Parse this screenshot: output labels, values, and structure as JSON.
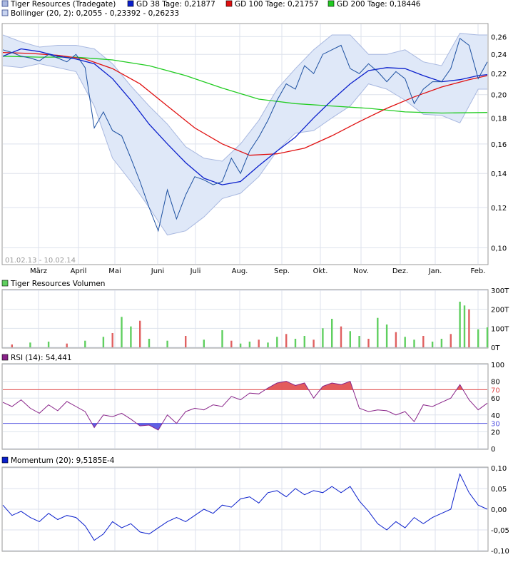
{
  "legend": {
    "price_label": "Tiger Resources (Tradegate)",
    "gd38_label": "GD 38 Tage: 0,21877",
    "gd100_label": "GD 100 Tage: 0,21757",
    "gd200_label": "GD 200 Tage: 0,18446",
    "bollinger_label": "Bollinger (20, 2): 0,2055 - 0,23392 - 0,26233",
    "date_range": "01.02.13 - 10.02.14",
    "volume_label": "Tiger Resources Volumen",
    "rsi_label": "RSI (14): 54,441",
    "momentum_label": "Momentum (20): 9,5185E-4"
  },
  "colors": {
    "price": "#1b4fa0",
    "gd38": "#0a1fcc",
    "gd100": "#e01010",
    "gd200": "#22cc22",
    "band_fill": "#dfe8f8",
    "band_line": "#a8b8e0",
    "volume_up": "#5fcf5f",
    "volume_down": "#e06060",
    "rsi": "#882288",
    "rsi_over": "#e04a4a",
    "rsi_under": "#5050e0",
    "momentum": "#0a1fcc"
  },
  "chart_data": [
    {
      "type": "line",
      "panel": "price",
      "scale": "log",
      "months": [
        "März",
        "April",
        "Mai",
        "Juni",
        "Juli",
        "Aug.",
        "Sep.",
        "Okt.",
        "Nov.",
        "Dez.",
        "Jan.",
        "Feb."
      ],
      "y_ticks": [
        "0,10",
        "0,12",
        "0,14",
        "0,16",
        "0,18",
        "0,20",
        "0,22",
        "0,24",
        "0,26"
      ],
      "ylim": [
        0.093,
        0.275
      ],
      "x_unit": "weeks since 01.02.13",
      "series": [
        {
          "name": "Tiger Resources (Tradegate)",
          "x": [
            0,
            1,
            2,
            3,
            4,
            5,
            6,
            7,
            8,
            9,
            10,
            11,
            12,
            13,
            14,
            15,
            16,
            17,
            18,
            19,
            20,
            21,
            22,
            23,
            24,
            25,
            26,
            27,
            28,
            29,
            30,
            31,
            32,
            33,
            34,
            35,
            36,
            37,
            38,
            39,
            40,
            41,
            42,
            43,
            44,
            45,
            46,
            47,
            48,
            49,
            50,
            51,
            52,
            53
          ],
          "y": [
            0.245,
            0.242,
            0.238,
            0.236,
            0.233,
            0.24,
            0.236,
            0.232,
            0.24,
            0.226,
            0.172,
            0.185,
            0.17,
            0.166,
            0.15,
            0.135,
            0.12,
            0.108,
            0.13,
            0.114,
            0.127,
            0.138,
            0.136,
            0.133,
            0.135,
            0.15,
            0.14,
            0.155,
            0.165,
            0.178,
            0.195,
            0.21,
            0.205,
            0.228,
            0.22,
            0.24,
            0.245,
            0.25,
            0.225,
            0.22,
            0.23,
            0.222,
            0.212,
            0.222,
            0.215,
            0.192,
            0.205,
            0.212,
            0.212,
            0.225,
            0.258,
            0.25,
            0.215,
            0.232
          ]
        },
        {
          "name": "GD 38 Tage",
          "x": [
            0,
            2,
            4,
            6,
            8,
            10,
            12,
            14,
            16,
            18,
            20,
            22,
            24,
            26,
            28,
            30,
            32,
            34,
            36,
            38,
            40,
            42,
            44,
            46,
            48,
            50,
            52,
            53
          ],
          "y": [
            0.238,
            0.246,
            0.243,
            0.238,
            0.235,
            0.23,
            0.215,
            0.195,
            0.175,
            0.16,
            0.147,
            0.137,
            0.133,
            0.135,
            0.145,
            0.155,
            0.165,
            0.18,
            0.195,
            0.21,
            0.223,
            0.226,
            0.225,
            0.218,
            0.212,
            0.214,
            0.218,
            0.219
          ]
        },
        {
          "name": "GD 100 Tage",
          "x": [
            0,
            3,
            6,
            9,
            12,
            15,
            18,
            21,
            24,
            27,
            30,
            33,
            36,
            39,
            42,
            45,
            48,
            51,
            53
          ],
          "y": [
            0.242,
            0.241,
            0.239,
            0.235,
            0.225,
            0.21,
            0.19,
            0.172,
            0.16,
            0.152,
            0.153,
            0.157,
            0.166,
            0.177,
            0.188,
            0.198,
            0.207,
            0.214,
            0.218
          ]
        },
        {
          "name": "GD 200 Tage",
          "x": [
            0,
            4,
            8,
            12,
            16,
            20,
            24,
            28,
            32,
            36,
            40,
            44,
            48,
            53
          ],
          "y": [
            0.238,
            0.237,
            0.237,
            0.234,
            0.228,
            0.218,
            0.206,
            0.196,
            0.192,
            0.19,
            0.188,
            0.185,
            0.184,
            0.1845
          ]
        },
        {
          "name": "Bollinger oben",
          "x": [
            0,
            2,
            4,
            6,
            8,
            10,
            12,
            14,
            16,
            18,
            20,
            22,
            24,
            26,
            28,
            30,
            32,
            34,
            36,
            38,
            40,
            42,
            44,
            46,
            48,
            50,
            52,
            53
          ],
          "y": [
            0.262,
            0.254,
            0.248,
            0.25,
            0.25,
            0.246,
            0.23,
            0.208,
            0.19,
            0.175,
            0.158,
            0.15,
            0.148,
            0.16,
            0.178,
            0.205,
            0.225,
            0.245,
            0.262,
            0.262,
            0.24,
            0.24,
            0.245,
            0.232,
            0.228,
            0.264,
            0.262,
            0.262
          ]
        },
        {
          "name": "Bollinger unten",
          "x": [
            0,
            2,
            4,
            6,
            8,
            10,
            12,
            14,
            16,
            18,
            20,
            22,
            24,
            26,
            28,
            30,
            32,
            34,
            36,
            38,
            40,
            42,
            44,
            46,
            48,
            50,
            52,
            53
          ],
          "y": [
            0.228,
            0.226,
            0.23,
            0.226,
            0.222,
            0.19,
            0.15,
            0.135,
            0.12,
            0.106,
            0.108,
            0.115,
            0.125,
            0.128,
            0.138,
            0.155,
            0.168,
            0.17,
            0.18,
            0.19,
            0.21,
            0.205,
            0.195,
            0.183,
            0.182,
            0.176,
            0.205,
            0.205
          ]
        }
      ]
    },
    {
      "type": "bar",
      "panel": "volume",
      "y_ticks": [
        "0T",
        "100T",
        "200T",
        "300T"
      ],
      "ylim": [
        0,
        300
      ],
      "y_unit": "T",
      "x_unit": "weeks since 01.02.13",
      "series": [
        {
          "name": "Tiger Resources Volumen",
          "x": [
            1,
            3,
            5,
            7,
            9,
            11,
            12,
            13,
            14,
            15,
            16,
            18,
            20,
            22,
            24,
            25,
            26,
            27,
            28,
            29,
            30,
            31,
            32,
            33,
            34,
            35,
            36,
            37,
            38,
            39,
            40,
            41,
            42,
            43,
            44,
            45,
            46,
            47,
            48,
            49,
            50,
            50.5,
            51,
            52,
            53
          ],
          "y": [
            15,
            25,
            30,
            20,
            35,
            55,
            75,
            160,
            110,
            140,
            45,
            35,
            60,
            40,
            90,
            35,
            20,
            30,
            40,
            25,
            55,
            70,
            45,
            60,
            40,
            100,
            150,
            110,
            85,
            60,
            45,
            155,
            120,
            80,
            55,
            40,
            60,
            30,
            45,
            70,
            240,
            220,
            200,
            95,
            105
          ]
        }
      ]
    },
    {
      "type": "line",
      "panel": "rsi",
      "y_ticks": [
        "0",
        "20",
        "40",
        "60",
        "80",
        "100"
      ],
      "ylim": [
        0,
        100
      ],
      "levels": {
        "upper": 70,
        "lower": 30
      },
      "x_unit": "weeks since 01.02.13",
      "series": [
        {
          "name": "RSI (14)",
          "x": [
            0,
            1,
            2,
            3,
            4,
            5,
            6,
            7,
            8,
            9,
            10,
            11,
            12,
            13,
            14,
            15,
            16,
            17,
            18,
            19,
            20,
            21,
            22,
            23,
            24,
            25,
            26,
            27,
            28,
            29,
            30,
            31,
            32,
            33,
            34,
            35,
            36,
            37,
            38,
            39,
            40,
            41,
            42,
            43,
            44,
            45,
            46,
            47,
            48,
            49,
            50,
            51,
            52,
            53
          ],
          "y": [
            55,
            50,
            58,
            48,
            42,
            52,
            45,
            56,
            50,
            44,
            25,
            40,
            38,
            42,
            35,
            27,
            28,
            22,
            40,
            30,
            44,
            48,
            46,
            52,
            50,
            62,
            58,
            66,
            65,
            72,
            78,
            80,
            75,
            78,
            60,
            74,
            78,
            76,
            80,
            48,
            44,
            46,
            45,
            40,
            44,
            32,
            52,
            50,
            55,
            60,
            76,
            58,
            46,
            54
          ]
        }
      ]
    },
    {
      "type": "line",
      "panel": "momentum",
      "y_ticks": [
        "-0,10",
        "-0,05",
        "0,00",
        "0,05",
        "0,10"
      ],
      "ylim": [
        -0.1,
        0.1
      ],
      "x_unit": "weeks since 01.02.13",
      "series": [
        {
          "name": "Momentum (20)",
          "x": [
            0,
            1,
            2,
            3,
            4,
            5,
            6,
            7,
            8,
            9,
            10,
            11,
            12,
            13,
            14,
            15,
            16,
            17,
            18,
            19,
            20,
            21,
            22,
            23,
            24,
            25,
            26,
            27,
            28,
            29,
            30,
            31,
            32,
            33,
            34,
            35,
            36,
            37,
            38,
            39,
            40,
            41,
            42,
            43,
            44,
            45,
            46,
            47,
            48,
            49,
            50,
            51,
            52,
            53
          ],
          "y": [
            0.01,
            -0.015,
            -0.005,
            -0.02,
            -0.03,
            -0.01,
            -0.025,
            -0.015,
            -0.02,
            -0.04,
            -0.075,
            -0.06,
            -0.03,
            -0.045,
            -0.035,
            -0.055,
            -0.06,
            -0.045,
            -0.03,
            -0.02,
            -0.03,
            -0.015,
            0.0,
            -0.01,
            0.01,
            0.005,
            0.025,
            0.03,
            0.015,
            0.04,
            0.045,
            0.03,
            0.05,
            0.035,
            0.045,
            0.04,
            0.055,
            0.04,
            0.055,
            0.02,
            -0.005,
            -0.035,
            -0.05,
            -0.03,
            -0.045,
            -0.02,
            -0.035,
            -0.02,
            -0.01,
            0.0,
            0.085,
            0.04,
            0.01,
            0.0
          ]
        }
      ]
    }
  ]
}
